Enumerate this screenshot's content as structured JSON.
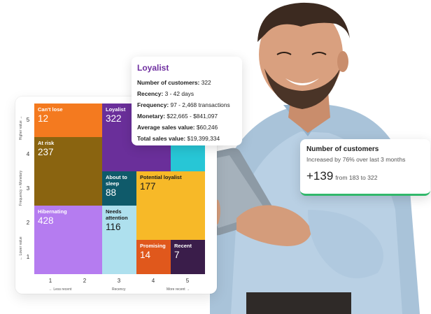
{
  "popup": {
    "title": "Loyalist",
    "rows": [
      {
        "label": "Number of customers:",
        "value": "322"
      },
      {
        "label": "Recency:",
        "value": "3 - 42 days"
      },
      {
        "label": "Frequency:",
        "value": "97 - 2,468 transactions"
      },
      {
        "label": "Monetary:",
        "value": "$22,665 - $841,097"
      },
      {
        "label": "Average sales value:",
        "value": "$60,246"
      },
      {
        "label": "Total sales value:",
        "value": "$19,399,334"
      }
    ]
  },
  "customers_card": {
    "title": "Number of customers",
    "subtitle": "Increased by 76% over last 3 months",
    "delta": "+139",
    "from_text": "from 183 to 322",
    "accent": "#31b86b"
  },
  "rfm": {
    "segments": [
      {
        "name": "Can't lose",
        "count": "12",
        "color": "#f47a1f"
      },
      {
        "name": "At risk",
        "count": "237",
        "color": "#8a6410"
      },
      {
        "name": "Hibernating",
        "count": "428",
        "color": "#b57cf0"
      },
      {
        "name": "Loyalist",
        "count": "322",
        "color": "#6a2f9a"
      },
      {
        "name": "About to sleep",
        "count": "88",
        "color": "#0f5a6a"
      },
      {
        "name": "Needs attention",
        "count": "116",
        "color": "#aee0ee"
      },
      {
        "name": "Potential loyalist",
        "count": "177",
        "color": "#f7b928"
      },
      {
        "name": "Promising",
        "count": "14",
        "color": "#e0581c"
      },
      {
        "name": "Recent",
        "count": "7",
        "color": "#3a1d4a"
      },
      {
        "name": "",
        "count": "",
        "color": "#27c6d6"
      }
    ],
    "y_ticks": [
      "5",
      "4",
      "3",
      "2",
      "1"
    ],
    "x_ticks": [
      "1",
      "2",
      "3",
      "4",
      "5"
    ],
    "y_axis_label": "Frequency + Monetary",
    "y_high": "Higher value →",
    "y_low": "← Lower value",
    "x_axis_label": "Recency",
    "x_low": "← Less recent",
    "x_high": "More recent →"
  }
}
